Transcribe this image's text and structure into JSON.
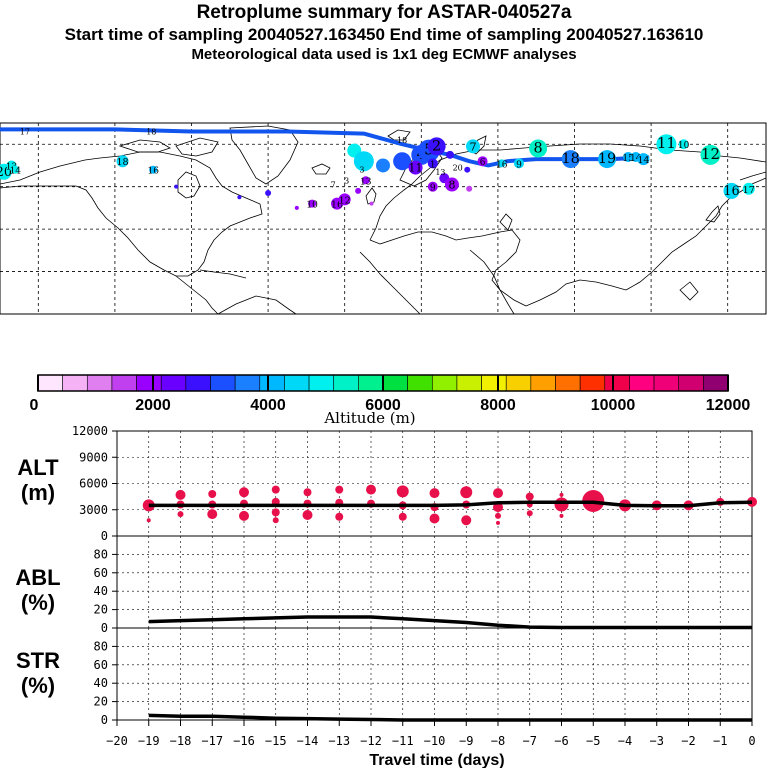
{
  "header": {
    "title": "Retroplume summary for ASTAR-040527a",
    "sampling_line": "Start time of sampling 20040527.163450     End time of sampling 20040527.163610",
    "met_line": "Meteorological data used is 1x1 deg ECMWF analyses"
  },
  "colors": {
    "path": "#1155ee",
    "scale": [
      "#ffe6ff",
      "#f5b3f5",
      "#e080f0",
      "#c040f0",
      "#9a00ff",
      "#6a00ff",
      "#3a10ff",
      "#1a50ff",
      "#1a80ff",
      "#00b8ff",
      "#00d8f8",
      "#00f0f0",
      "#00f0c8",
      "#00f090",
      "#00e040",
      "#40e000",
      "#90f000",
      "#c8f000",
      "#f0f000",
      "#f8d000",
      "#ffa000",
      "#ff7000",
      "#ff3000",
      "#f0004a",
      "#ff0080",
      "#f00078",
      "#d00070",
      "#900070"
    ],
    "altitude_marker": "#e8104a"
  },
  "map": {
    "points": [
      {
        "label": "20",
        "lon": -178,
        "lat": 67,
        "r": 8,
        "c": "#00f0f0"
      },
      {
        "label": "13",
        "lon": -174,
        "lat": 70,
        "r": 5,
        "c": "#00f0f0"
      },
      {
        "label": "14",
        "lon": -172,
        "lat": 68,
        "r": 4,
        "c": "#00f0f0"
      },
      {
        "label": "18",
        "lon": -116,
        "lat": 72,
        "r": 6,
        "c": "#00d8f8"
      },
      {
        "label": "16",
        "lon": -100,
        "lat": 68,
        "r": 4,
        "c": "#00b8ff"
      },
      {
        "label": "",
        "lon": -88,
        "lat": 60,
        "r": 2,
        "c": "#3a10ff"
      },
      {
        "label": "",
        "lon": -55,
        "lat": 55,
        "r": 2,
        "c": "#3a10ff"
      },
      {
        "label": "",
        "lon": -40,
        "lat": 57,
        "r": 3,
        "c": "#3a10ff"
      },
      {
        "label": "",
        "lon": -25,
        "lat": 50,
        "r": 2,
        "c": "#9a00ff"
      },
      {
        "label": "10",
        "lon": -17,
        "lat": 52,
        "r": 4,
        "c": "#9a00ff"
      },
      {
        "label": "16",
        "lon": -4,
        "lat": 52,
        "r": 6,
        "c": "#9a00ff"
      },
      {
        "label": "12",
        "lon": 0,
        "lat": 54,
        "r": 6,
        "c": "#9a00ff"
      },
      {
        "label": "",
        "lon": 7,
        "lat": 58,
        "r": 3,
        "c": "#9a00ff"
      },
      {
        "label": "13",
        "lon": 11,
        "lat": 63,
        "r": 4,
        "c": "#9a00ff"
      },
      {
        "label": "",
        "lon": 14,
        "lat": 52,
        "r": 2,
        "c": "#c040f0"
      },
      {
        "label": "",
        "lon": 5,
        "lat": 77,
        "r": 7,
        "c": "#00f0f0"
      },
      {
        "label": "",
        "lon": 10,
        "lat": 72,
        "r": 10,
        "c": "#00d8f8"
      },
      {
        "label": "",
        "lon": 20,
        "lat": 70,
        "r": 7,
        "c": "#1a80ff"
      },
      {
        "label": "",
        "lon": 30,
        "lat": 72,
        "r": 9,
        "c": "#1a50ff"
      },
      {
        "label": "4",
        "lon": 40,
        "lat": 75,
        "r": 10,
        "c": "#1a50ff"
      },
      {
        "label": "5",
        "lon": 44,
        "lat": 77,
        "r": 11,
        "c": "#1a50ff"
      },
      {
        "label": "2",
        "lon": 48,
        "lat": 79,
        "r": 9,
        "c": "#3a10ff"
      },
      {
        "label": "11",
        "lon": 37,
        "lat": 69,
        "r": 7,
        "c": "#6a00ff"
      },
      {
        "label": "",
        "lon": 52,
        "lat": 64,
        "r": 5,
        "c": "#6a00ff"
      },
      {
        "label": "8",
        "lon": 56,
        "lat": 61,
        "r": 7,
        "c": "#9a00ff"
      },
      {
        "label": "1",
        "lon": 46,
        "lat": 71,
        "r": 5,
        "c": "#3a10ff"
      },
      {
        "label": "9",
        "lon": 46,
        "lat": 60,
        "r": 5,
        "c": "#9a00ff"
      },
      {
        "label": "",
        "lon": 65,
        "lat": 59,
        "r": 3,
        "c": "#c040f0"
      },
      {
        "label": "",
        "lon": 55,
        "lat": 75,
        "r": 4,
        "c": "#3a10ff"
      },
      {
        "label": "7",
        "lon": 67,
        "lat": 79,
        "r": 7,
        "c": "#00d8f8"
      },
      {
        "label": "6",
        "lon": 72,
        "lat": 72,
        "r": 5,
        "c": "#9a00ff"
      },
      {
        "label": "",
        "lon": 64,
        "lat": 68,
        "r": 3,
        "c": "#3a10ff"
      },
      {
        "label": "16",
        "lon": 82,
        "lat": 71,
        "r": 4,
        "c": "#00d8f8"
      },
      {
        "label": "9",
        "lon": 91,
        "lat": 71,
        "r": 5,
        "c": "#00d8f8"
      },
      {
        "label": "8",
        "lon": 101,
        "lat": 78,
        "r": 9,
        "c": "#00f0c8"
      },
      {
        "label": "18",
        "lon": 118,
        "lat": 73,
        "r": 9,
        "c": "#1a80ff"
      },
      {
        "label": "19",
        "lon": 137,
        "lat": 73,
        "r": 9,
        "c": "#00b8ff"
      },
      {
        "label": "15",
        "lon": 148,
        "lat": 74,
        "r": 5,
        "c": "#00b8ff"
      },
      {
        "label": "14",
        "lon": 152,
        "lat": 74,
        "r": 5,
        "c": "#00b8ff"
      },
      {
        "label": "14",
        "lon": 156,
        "lat": 73,
        "r": 6,
        "c": "#00b8ff"
      },
      {
        "label": "11",
        "lon": 168,
        "lat": 80,
        "r": 10,
        "c": "#00f0f0"
      },
      {
        "label": "10",
        "lon": 177,
        "lat": 80,
        "r": 5,
        "c": "#00f0f0"
      },
      {
        "label": "12",
        "lon": 191,
        "lat": 75,
        "r": 10,
        "c": "#00f0c8"
      },
      {
        "label": "16",
        "lon": 202,
        "lat": 58,
        "r": 8,
        "c": "#00d8f8"
      },
      {
        "label": "17",
        "lon": 211,
        "lat": 59,
        "r": 6,
        "c": "#00f0f0"
      }
    ],
    "path_points": [
      [
        -180,
        87
      ],
      [
        -120,
        87
      ],
      [
        -80,
        86
      ],
      [
        -30,
        86
      ],
      [
        10,
        85
      ],
      [
        30,
        80
      ],
      [
        44,
        77
      ],
      [
        55,
        75
      ],
      [
        65,
        72
      ],
      [
        75,
        70
      ],
      [
        85,
        72
      ],
      [
        100,
        73
      ],
      [
        120,
        73
      ],
      [
        140,
        73
      ],
      [
        158,
        74
      ]
    ],
    "small_labels": [
      {
        "text": "17",
        "lon": -167,
        "lat": 86
      },
      {
        "text": "18",
        "lon": -101,
        "lat": 86
      },
      {
        "text": "18",
        "lon": 30,
        "lat": 82
      },
      {
        "text": "3",
        "lon": 1,
        "lat": 63
      },
      {
        "text": "7",
        "lon": -6,
        "lat": 61
      },
      {
        "text": "3",
        "lon": 9,
        "lat": 68
      },
      {
        "text": "13",
        "lon": 50,
        "lat": 67
      },
      {
        "text": "20",
        "lon": 59,
        "lat": 69
      }
    ]
  },
  "colorbar": {
    "tick_labels": [
      "0",
      "2000",
      "4000",
      "6000",
      "8000",
      "10000",
      "12000"
    ],
    "axis_label": "Altitude (m)"
  },
  "panels": {
    "alt": {
      "label1": "ALT",
      "label2": "(m)"
    },
    "abl": {
      "label1": "ABL",
      "label2": "(%)"
    },
    "str": {
      "label1": "STR",
      "label2": "(%)"
    }
  },
  "chart_data": [
    {
      "type": "line",
      "title": "ALT (m)",
      "ylabel": "ALT (m)",
      "xlim": [
        -20,
        0
      ],
      "ylim": [
        0,
        12000
      ],
      "yticks": [
        0,
        3000,
        6000,
        9000,
        12000
      ],
      "x": [
        -19,
        -18,
        -17,
        -16,
        -15,
        -14,
        -13,
        -12,
        -11,
        -10,
        -9,
        -8,
        -7,
        -6,
        -5,
        -4,
        -3,
        -2,
        -1,
        0
      ],
      "values": [
        3500,
        3500,
        3500,
        3500,
        3500,
        3500,
        3500,
        3500,
        3500,
        3500,
        3550,
        3800,
        3850,
        3850,
        3850,
        3500,
        3450,
        3450,
        3800,
        3850
      ],
      "markers": [
        {
          "x": -19,
          "y": 3500,
          "size": 6
        },
        {
          "x": -19,
          "y": 1800,
          "size": 2
        },
        {
          "x": -18,
          "y": 4700,
          "size": 5
        },
        {
          "x": -18,
          "y": 3600,
          "size": 4
        },
        {
          "x": -18,
          "y": 2500,
          "size": 3
        },
        {
          "x": -17,
          "y": 4800,
          "size": 4
        },
        {
          "x": -17,
          "y": 3600,
          "size": 4
        },
        {
          "x": -17,
          "y": 2500,
          "size": 5
        },
        {
          "x": -16,
          "y": 5000,
          "size": 5
        },
        {
          "x": -16,
          "y": 3700,
          "size": 4
        },
        {
          "x": -16,
          "y": 2300,
          "size": 5
        },
        {
          "x": -15,
          "y": 5300,
          "size": 4
        },
        {
          "x": -15,
          "y": 3900,
          "size": 4
        },
        {
          "x": -15,
          "y": 2700,
          "size": 4
        },
        {
          "x": -15,
          "y": 1800,
          "size": 3
        },
        {
          "x": -14,
          "y": 5000,
          "size": 4
        },
        {
          "x": -14,
          "y": 3700,
          "size": 4
        },
        {
          "x": -14,
          "y": 2400,
          "size": 5
        },
        {
          "x": -13,
          "y": 5300,
          "size": 4
        },
        {
          "x": -13,
          "y": 3800,
          "size": 4
        },
        {
          "x": -13,
          "y": 2200,
          "size": 4
        },
        {
          "x": -12,
          "y": 5300,
          "size": 5
        },
        {
          "x": -12,
          "y": 3700,
          "size": 4
        },
        {
          "x": -11,
          "y": 5100,
          "size": 6
        },
        {
          "x": -11,
          "y": 3500,
          "size": 4
        },
        {
          "x": -11,
          "y": 2200,
          "size": 4
        },
        {
          "x": -10,
          "y": 4900,
          "size": 5
        },
        {
          "x": -10,
          "y": 3300,
          "size": 4
        },
        {
          "x": -10,
          "y": 2000,
          "size": 5
        },
        {
          "x": -9,
          "y": 5000,
          "size": 6
        },
        {
          "x": -9,
          "y": 3600,
          "size": 4
        },
        {
          "x": -9,
          "y": 1800,
          "size": 5
        },
        {
          "x": -8,
          "y": 4900,
          "size": 5
        },
        {
          "x": -8,
          "y": 3300,
          "size": 5
        },
        {
          "x": -8,
          "y": 2300,
          "size": 3
        },
        {
          "x": -8,
          "y": 1500,
          "size": 2
        },
        {
          "x": -7,
          "y": 4500,
          "size": 4
        },
        {
          "x": -7,
          "y": 3600,
          "size": 3
        },
        {
          "x": -7,
          "y": 2600,
          "size": 3
        },
        {
          "x": -6,
          "y": 4700,
          "size": 2
        },
        {
          "x": -6,
          "y": 3600,
          "size": 7
        },
        {
          "x": -6,
          "y": 2300,
          "size": 2
        },
        {
          "x": -5,
          "y": 4000,
          "size": 11
        },
        {
          "x": -4,
          "y": 3500,
          "size": 6
        },
        {
          "x": -3,
          "y": 3500,
          "size": 5
        },
        {
          "x": -2,
          "y": 3500,
          "size": 5
        },
        {
          "x": -1,
          "y": 3900,
          "size": 4
        },
        {
          "x": 0,
          "y": 3900,
          "size": 5
        }
      ]
    },
    {
      "type": "line",
      "title": "ABL (%)",
      "ylabel": "ABL (%)",
      "xlim": [
        -20,
        0
      ],
      "ylim": [
        0,
        100
      ],
      "yticks": [
        0,
        20,
        40,
        60,
        80
      ],
      "x": [
        -19,
        -18,
        -17,
        -16,
        -15,
        -14,
        -13,
        -12,
        -11,
        -10,
        -9,
        -8,
        -7,
        -6,
        -5,
        -4,
        -3,
        -2,
        -1,
        0
      ],
      "values": [
        7,
        8,
        9,
        10,
        11,
        12,
        12,
        12,
        10,
        8,
        6,
        3,
        1,
        0.5,
        0.5,
        0.5,
        0.5,
        0.5,
        0.5,
        0.5
      ]
    },
    {
      "type": "line",
      "title": "STR (%)",
      "ylabel": "STR (%)",
      "xlim": [
        -20,
        0
      ],
      "ylim": [
        0,
        100
      ],
      "yticks": [
        0,
        20,
        40,
        60,
        80
      ],
      "x": [
        -19,
        -18,
        -17,
        -16,
        -15,
        -14,
        -13,
        -12,
        -11,
        -10,
        -9,
        -8,
        -7,
        -6,
        -5,
        -4,
        -3,
        -2,
        -1,
        0
      ],
      "values": [
        5,
        4,
        4,
        3,
        2,
        1.5,
        1,
        0.5,
        0,
        0,
        0,
        0,
        0,
        0,
        0,
        0,
        0,
        0,
        0,
        0
      ],
      "x_tick_labels": [
        "−20",
        "−19",
        "−18",
        "−17",
        "−16",
        "−15",
        "−14",
        "−13",
        "−12",
        "−11",
        "−10",
        "−9",
        "−8",
        "−7",
        "−6",
        "−5",
        "−4",
        "−3",
        "−2",
        "−1",
        "0"
      ],
      "xlabel": "Travel time (days)"
    }
  ]
}
